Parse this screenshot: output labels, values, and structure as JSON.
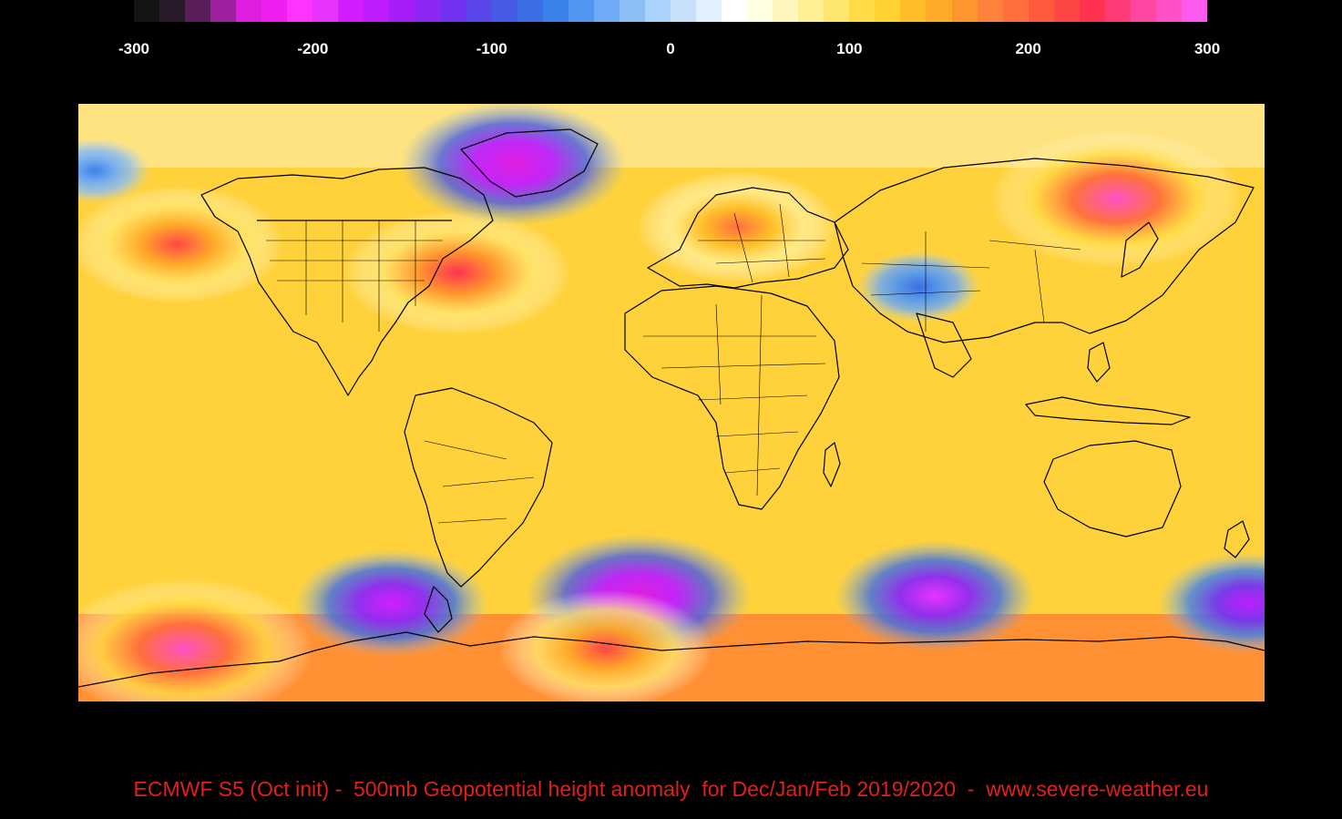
{
  "colorbar": {
    "colors": [
      "#141414",
      "#2b1a2b",
      "#5a1e5a",
      "#a021a0",
      "#e01ee0",
      "#f01ef0",
      "#ff33ff",
      "#e833ff",
      "#d21eff",
      "#be1eff",
      "#a51efa",
      "#8c28f5",
      "#7332f0",
      "#5a46eb",
      "#465ae6",
      "#3c6ee6",
      "#3c82eb",
      "#5096f0",
      "#6eaaf5",
      "#8cbef5",
      "#aad2fa",
      "#c8e1fa",
      "#e1f0ff",
      "#ffffff",
      "#ffffe1",
      "#fff5be",
      "#fff096",
      "#ffe66e",
      "#ffdc46",
      "#ffd232",
      "#ffbe28",
      "#ffaa28",
      "#ff962d",
      "#ff823c",
      "#ff6e3c",
      "#ff5a3c",
      "#ff4646",
      "#ff3250",
      "#ff3c78",
      "#ff46a0",
      "#ff50c8",
      "#ff5af0"
    ],
    "ticks": [
      "-300",
      "-200",
      "-100",
      "0",
      "100",
      "200",
      "300"
    ],
    "range": [
      -300,
      300
    ]
  },
  "map": {
    "projection": "equirectangular",
    "background_color": "#ffd23c",
    "features": [
      "continent-outlines",
      "country-borders",
      "us-state-borders"
    ],
    "anomalies": [
      {
        "name": "greenland-low",
        "lon": -48,
        "lat": 68,
        "value": -240
      },
      {
        "name": "central-asia-low",
        "lon": 75,
        "lat": 33,
        "value": -80
      },
      {
        "name": "alaska-low",
        "lon": -175,
        "lat": 66,
        "value": -60
      },
      {
        "name": "east-asia-high",
        "lon": 135,
        "lat": 58,
        "value": 280
      },
      {
        "name": "north-pacific-high",
        "lon": -150,
        "lat": 45,
        "value": 220
      },
      {
        "name": "us-east-coast-high",
        "lon": -65,
        "lat": 37,
        "value": 240
      },
      {
        "name": "europe-high",
        "lon": 20,
        "lat": 50,
        "value": 200
      },
      {
        "name": "south-atlantic-low",
        "lon": -10,
        "lat": -55,
        "value": -240
      },
      {
        "name": "south-indian-low",
        "lon": 80,
        "lat": -55,
        "value": -200
      },
      {
        "name": "south-pacific-low",
        "lon": -85,
        "lat": -57,
        "value": -190
      },
      {
        "name": "new-zealand-low",
        "lon": 175,
        "lat": -57,
        "value": -170
      },
      {
        "name": "south-pacific-high",
        "lon": -148,
        "lat": -70,
        "value": 290
      },
      {
        "name": "antarctic-coast-high",
        "lon": -20,
        "lat": -70,
        "value": 220
      }
    ]
  },
  "caption": "ECMWF S5 (Oct init) -  500mb Geopotential height anomaly  for Dec/Jan/Feb 2019/2020  -  www.severe-weather.eu"
}
